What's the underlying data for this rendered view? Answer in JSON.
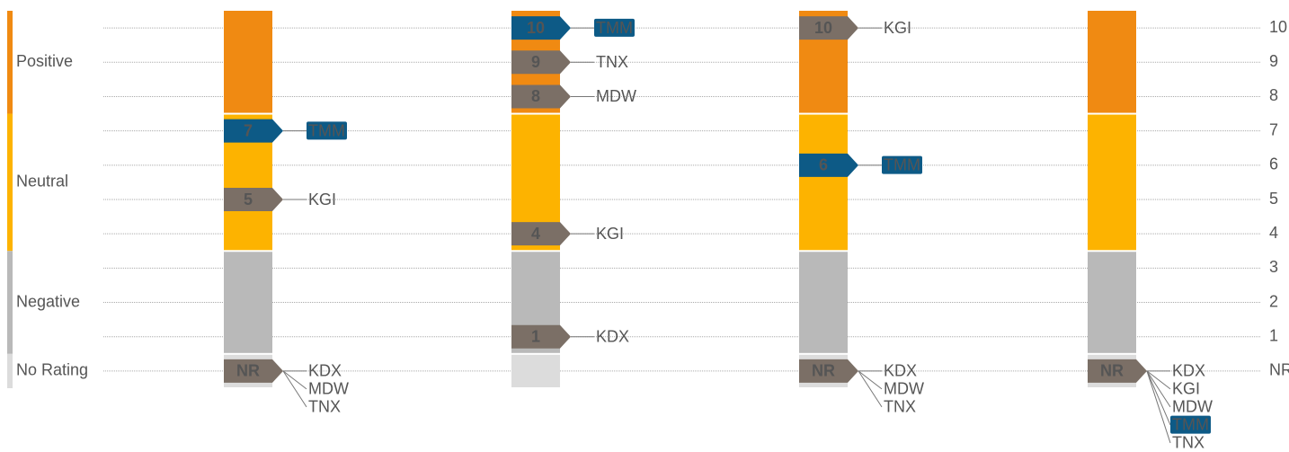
{
  "chart_data": {
    "type": "rating",
    "ylim": [
      -0.5,
      10.5
    ],
    "yticks": [
      {
        "value": 0,
        "label": "NR"
      },
      1,
      2,
      3,
      4,
      5,
      6,
      7,
      8,
      9,
      10
    ],
    "grid": true,
    "highlight": "TMM",
    "highlight_color": "#0d5a86",
    "marker_color": "#7b6f66",
    "bands": [
      {
        "name": "Positive",
        "from": 7.5,
        "to": 10.5,
        "color": "#f08a12"
      },
      {
        "name": "Neutral",
        "from": 3.5,
        "to": 7.5,
        "color": "#fdb300"
      },
      {
        "name": "Negative",
        "from": 0.5,
        "to": 3.5,
        "color": "#b9b9b9"
      },
      {
        "name": "No Rating",
        "from": -0.5,
        "to": 0.5,
        "color": "#dcdcdc"
      }
    ],
    "columns": [
      {
        "ratings": [
          {
            "score": 7,
            "firms": [
              "TMM"
            ]
          },
          {
            "score": 5,
            "firms": [
              "KGI"
            ]
          },
          {
            "score": 0,
            "score_label": "NR",
            "firms": [
              "KDX",
              "MDW",
              "TNX"
            ]
          }
        ]
      },
      {
        "ratings": [
          {
            "score": 10,
            "firms": [
              "TMM"
            ]
          },
          {
            "score": 9,
            "firms": [
              "TNX"
            ]
          },
          {
            "score": 8,
            "firms": [
              "MDW"
            ]
          },
          {
            "score": 4,
            "firms": [
              "KGI"
            ]
          },
          {
            "score": 1,
            "firms": [
              "KDX"
            ]
          }
        ]
      },
      {
        "ratings": [
          {
            "score": 10,
            "firms": [
              "KGI"
            ]
          },
          {
            "score": 6,
            "firms": [
              "TMM"
            ]
          },
          {
            "score": 0,
            "score_label": "NR",
            "firms": [
              "KDX",
              "MDW",
              "TNX"
            ]
          }
        ]
      },
      {
        "ratings": [
          {
            "score": 0,
            "score_label": "NR",
            "firms": [
              "KDX",
              "KGI",
              "MDW",
              "TMM",
              "TNX"
            ]
          }
        ]
      }
    ]
  }
}
